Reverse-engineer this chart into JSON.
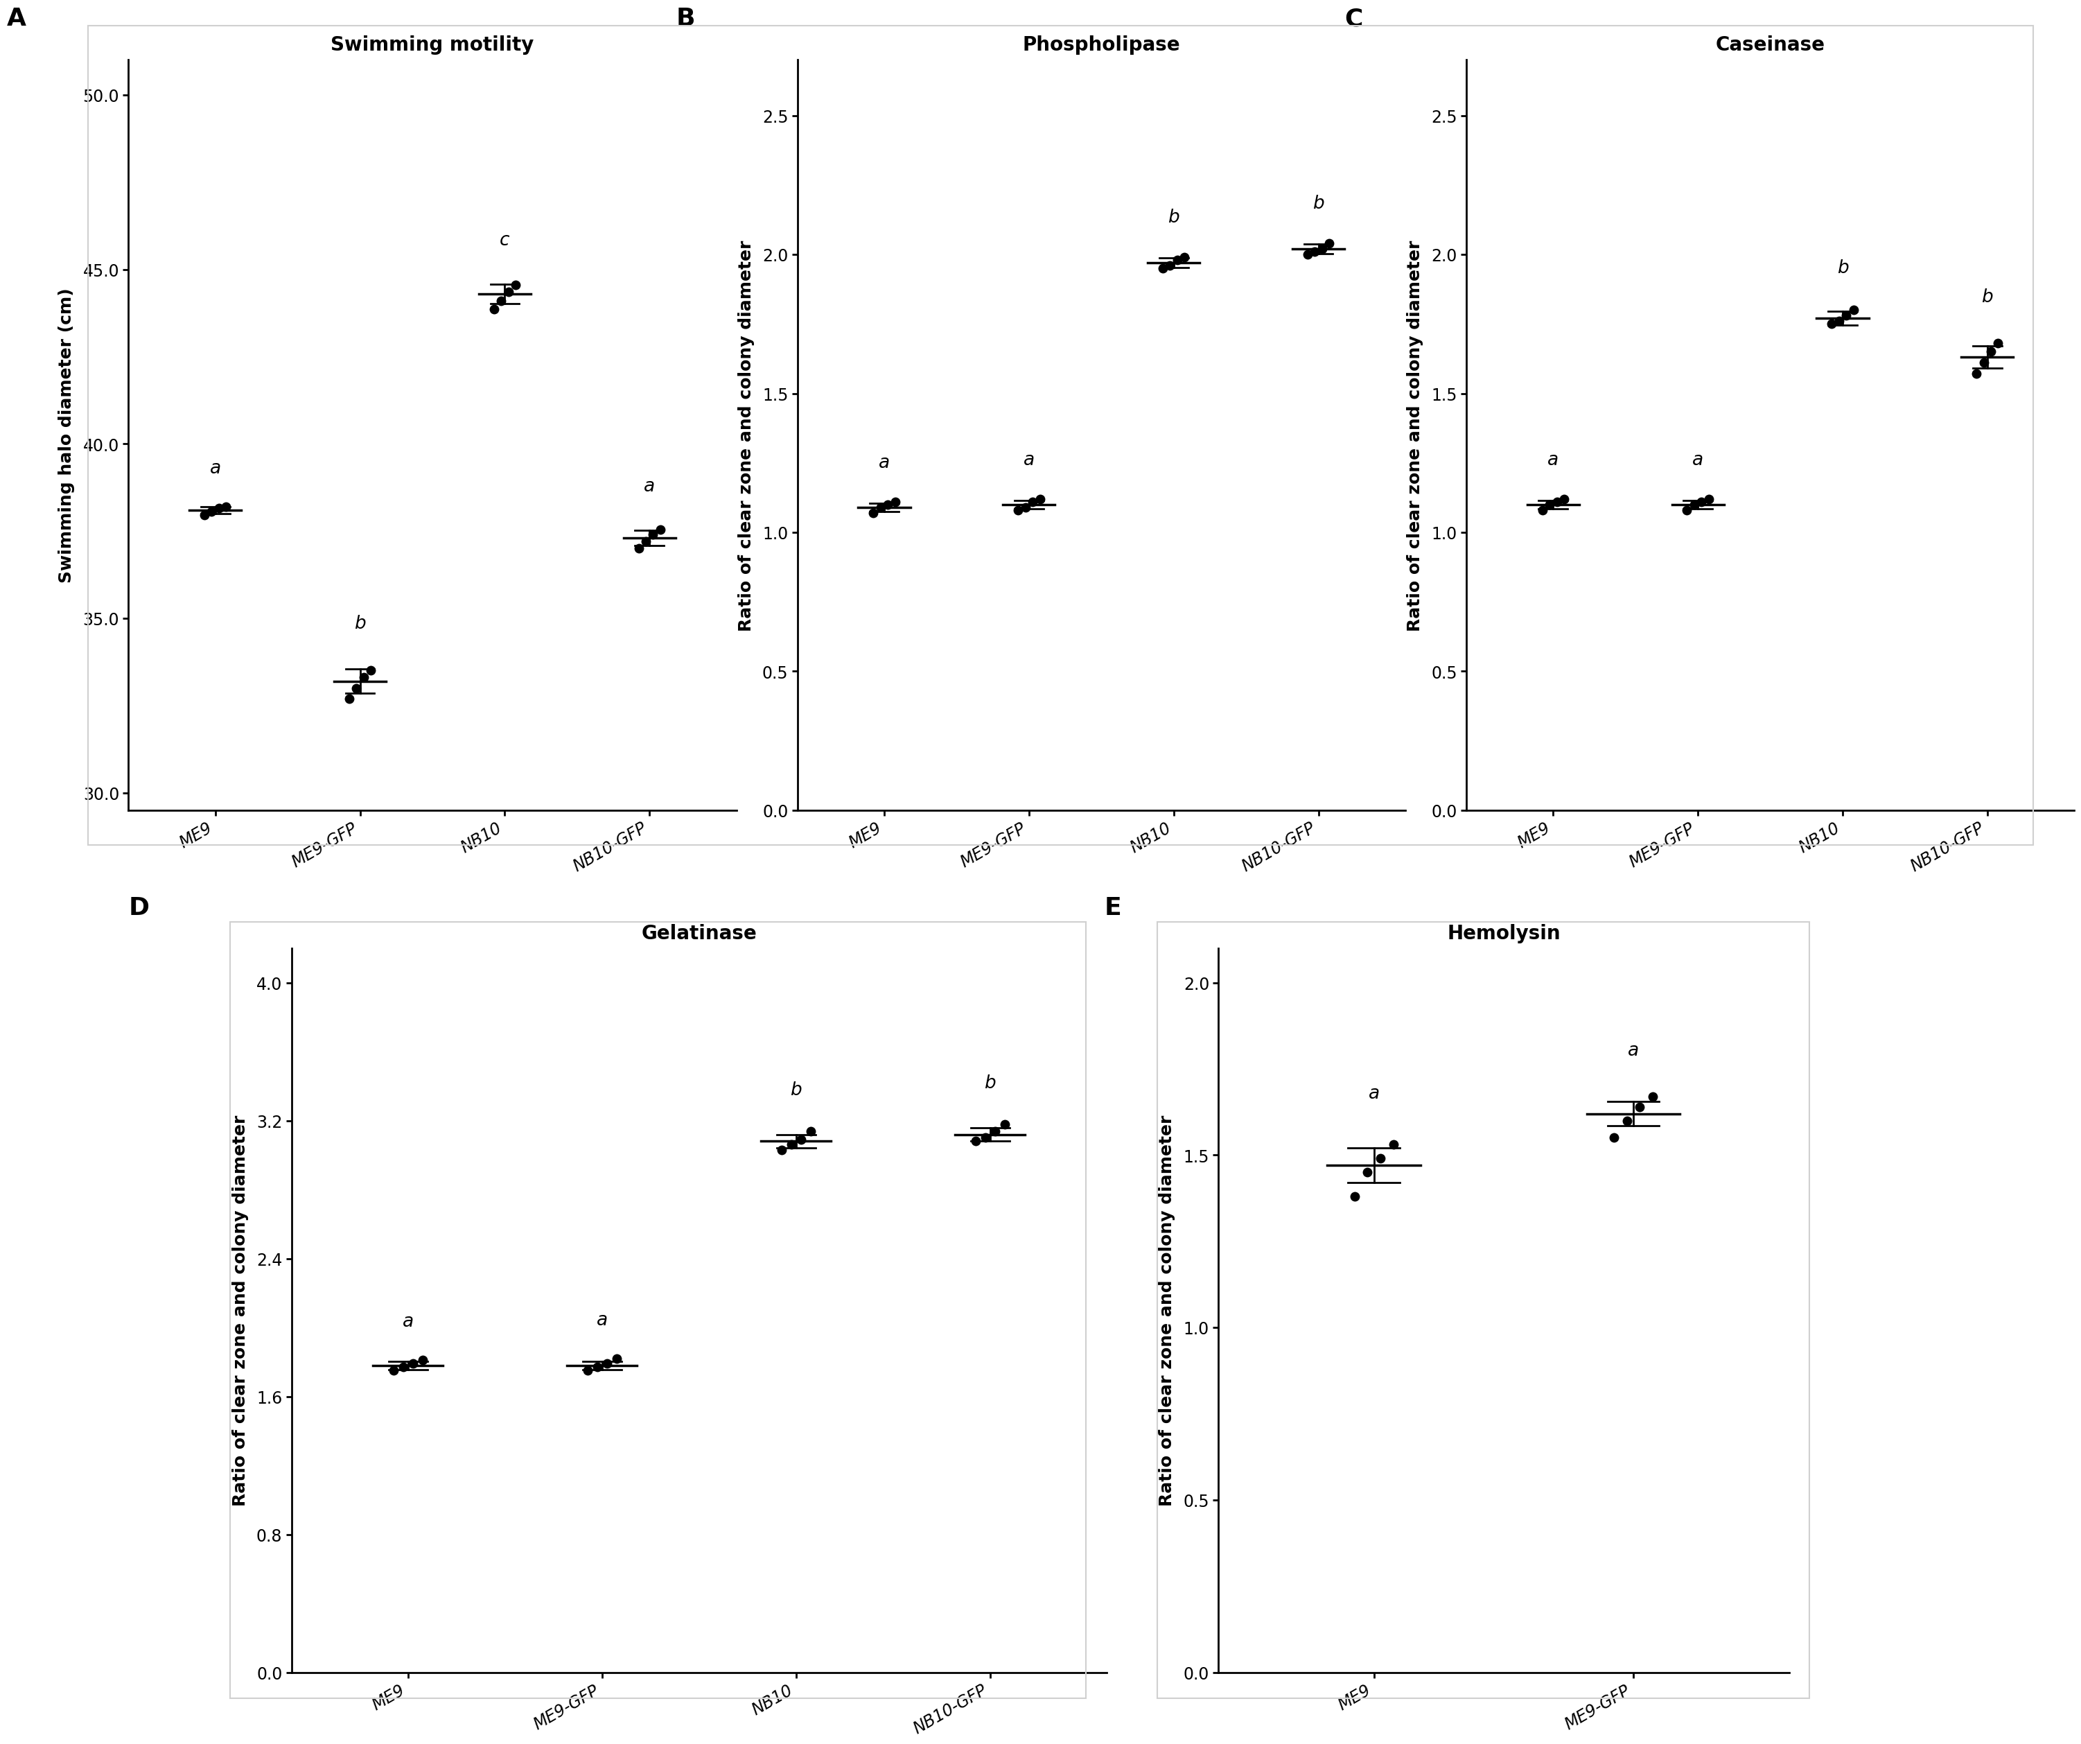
{
  "panel_A": {
    "title": "Swimming motility",
    "ylabel": "Swimming halo diameter (cm)",
    "categories": [
      "ME9",
      "ME9-GFP",
      "NB10",
      "NB10-GFP"
    ],
    "means": [
      38.1,
      33.2,
      44.3,
      37.3
    ],
    "sems": [
      0.1,
      0.35,
      0.28,
      0.22
    ],
    "points": [
      [
        37.95,
        38.05,
        38.15,
        38.2
      ],
      [
        32.7,
        33.0,
        33.3,
        33.5
      ],
      [
        43.85,
        44.1,
        44.35,
        44.55
      ],
      [
        37.0,
        37.2,
        37.4,
        37.55
      ]
    ],
    "letters": [
      "a",
      "b",
      "c",
      "a"
    ],
    "ylim": [
      29.5,
      51
    ],
    "yticks": [
      30,
      35,
      40,
      45,
      50
    ]
  },
  "panel_B": {
    "title": "Phospholipase",
    "ylabel": "Ratio of clear zone and colony diameter",
    "categories": [
      "ME9",
      "ME9-GFP",
      "NB10",
      "NB10-GFP"
    ],
    "means": [
      1.09,
      1.1,
      1.97,
      2.02
    ],
    "sems": [
      0.015,
      0.015,
      0.018,
      0.018
    ],
    "points": [
      [
        1.07,
        1.09,
        1.1,
        1.11
      ],
      [
        1.08,
        1.09,
        1.11,
        1.12
      ],
      [
        1.95,
        1.96,
        1.98,
        1.99
      ],
      [
        2.0,
        2.01,
        2.02,
        2.04
      ]
    ],
    "letters": [
      "a",
      "a",
      "b",
      "b"
    ],
    "ylim": [
      0,
      2.7
    ],
    "yticks": [
      0.0,
      0.5,
      1.0,
      1.5,
      2.0,
      2.5
    ]
  },
  "panel_C": {
    "title": "Caseinase",
    "ylabel": "Ratio of clear zone and colony diameter",
    "categories": [
      "ME9",
      "ME9-GFP",
      "NB10",
      "NB10-GFP"
    ],
    "means": [
      1.1,
      1.1,
      1.77,
      1.63
    ],
    "sems": [
      0.015,
      0.015,
      0.025,
      0.04
    ],
    "points": [
      [
        1.08,
        1.1,
        1.11,
        1.12
      ],
      [
        1.08,
        1.1,
        1.11,
        1.12
      ],
      [
        1.75,
        1.76,
        1.78,
        1.8
      ],
      [
        1.57,
        1.61,
        1.65,
        1.68
      ]
    ],
    "letters": [
      "a",
      "a",
      "b",
      "b"
    ],
    "ylim": [
      0,
      2.7
    ],
    "yticks": [
      0.0,
      0.5,
      1.0,
      1.5,
      2.0,
      2.5
    ]
  },
  "panel_D": {
    "title": "Gelatinase",
    "ylabel": "Ratio of clear zone and colony diameter",
    "categories": [
      "ME9",
      "ME9-GFP",
      "NB10",
      "NB10-GFP"
    ],
    "means": [
      1.78,
      1.78,
      3.08,
      3.12
    ],
    "sems": [
      0.025,
      0.025,
      0.04,
      0.04
    ],
    "points": [
      [
        1.75,
        1.77,
        1.79,
        1.81
      ],
      [
        1.75,
        1.77,
        1.79,
        1.82
      ],
      [
        3.03,
        3.06,
        3.09,
        3.14
      ],
      [
        3.08,
        3.1,
        3.14,
        3.18
      ]
    ],
    "letters": [
      "a",
      "a",
      "b",
      "b"
    ],
    "ylim": [
      0,
      4.2
    ],
    "yticks": [
      0.0,
      0.8,
      1.6,
      2.4,
      3.2,
      4.0
    ]
  },
  "panel_E": {
    "title": "Hemolysin",
    "ylabel": "Ratio of clear zone and colony diameter",
    "categories": [
      "ME9",
      "ME9-GFP"
    ],
    "means": [
      1.47,
      1.62
    ],
    "sems": [
      0.05,
      0.035
    ],
    "points": [
      [
        1.38,
        1.45,
        1.49,
        1.53
      ],
      [
        1.55,
        1.6,
        1.64,
        1.67
      ]
    ],
    "letters": [
      "a",
      "a"
    ],
    "ylim": [
      0,
      2.1
    ],
    "yticks": [
      0.0,
      0.5,
      1.0,
      1.5,
      2.0
    ]
  },
  "bg_color": "#ffffff",
  "dot_color": "#000000",
  "dot_size": 100,
  "capsize": 7,
  "label_fontsize": 18,
  "title_fontsize": 20,
  "tick_fontsize": 17,
  "letter_fontsize": 19,
  "panel_label_fontsize": 26,
  "box_color": "#d0d0d0"
}
